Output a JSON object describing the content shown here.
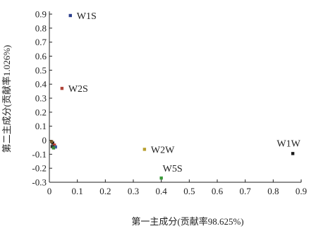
{
  "chart_data": {
    "type": "scatter",
    "title": "",
    "xlabel": "第一主成分(贡献率98.625%)",
    "ylabel": "第二主成分(贡献率1.026%)",
    "xlim": [
      0,
      0.9
    ],
    "ylim": [
      -0.3,
      0.9
    ],
    "xticks": [
      0,
      0.1,
      0.2,
      0.3,
      0.4,
      0.5,
      0.6,
      0.7,
      0.8,
      0.9
    ],
    "xtick_labels": [
      "0",
      "0.1",
      "0.2",
      "0.3",
      "0.4",
      "0.5",
      "0.6",
      "0.7",
      "0.8",
      "0.9"
    ],
    "yticks": [
      0.9,
      0.8,
      0.7,
      0.6,
      0.5,
      0.4,
      0.3,
      0.2,
      0.1,
      0,
      -0.1,
      -0.2,
      -0.3
    ],
    "ytick_labels": [
      "0.9",
      "0.8",
      "0.7",
      "0.6",
      "0.5",
      "0.4",
      "0.3",
      "0.2",
      "0.1",
      "0",
      "-0.1",
      "-0.2",
      "-0.3"
    ],
    "grid": false,
    "points": [
      {
        "label": "W1S",
        "x": 0.075,
        "y": 0.89,
        "color": "#2b3f8c"
      },
      {
        "label": "W2S",
        "x": 0.045,
        "y": 0.37,
        "color": "#b0453a"
      },
      {
        "label": "W2W",
        "x": 0.34,
        "y": -0.065,
        "color": "#b8a030"
      },
      {
        "label": "W5S",
        "x": 0.4,
        "y": -0.27,
        "color": "#3a9a3a"
      },
      {
        "label": "W1W",
        "x": 0.87,
        "y": -0.095,
        "color": "#1a1a1a"
      },
      {
        "label": "",
        "x": 0.012,
        "y": -0.02,
        "color": "#1a1a1a"
      },
      {
        "label": "",
        "x": 0.018,
        "y": -0.035,
        "color": "#c23b2a"
      },
      {
        "label": "",
        "x": 0.01,
        "y": -0.045,
        "color": "#2a2a2a"
      },
      {
        "label": "",
        "x": 0.022,
        "y": -0.048,
        "color": "#3a5fa0"
      },
      {
        "label": "",
        "x": 0.008,
        "y": -0.01,
        "color": "#7a5a2a"
      },
      {
        "label": "",
        "x": 0.015,
        "y": -0.055,
        "color": "#3a8a3a"
      }
    ]
  }
}
